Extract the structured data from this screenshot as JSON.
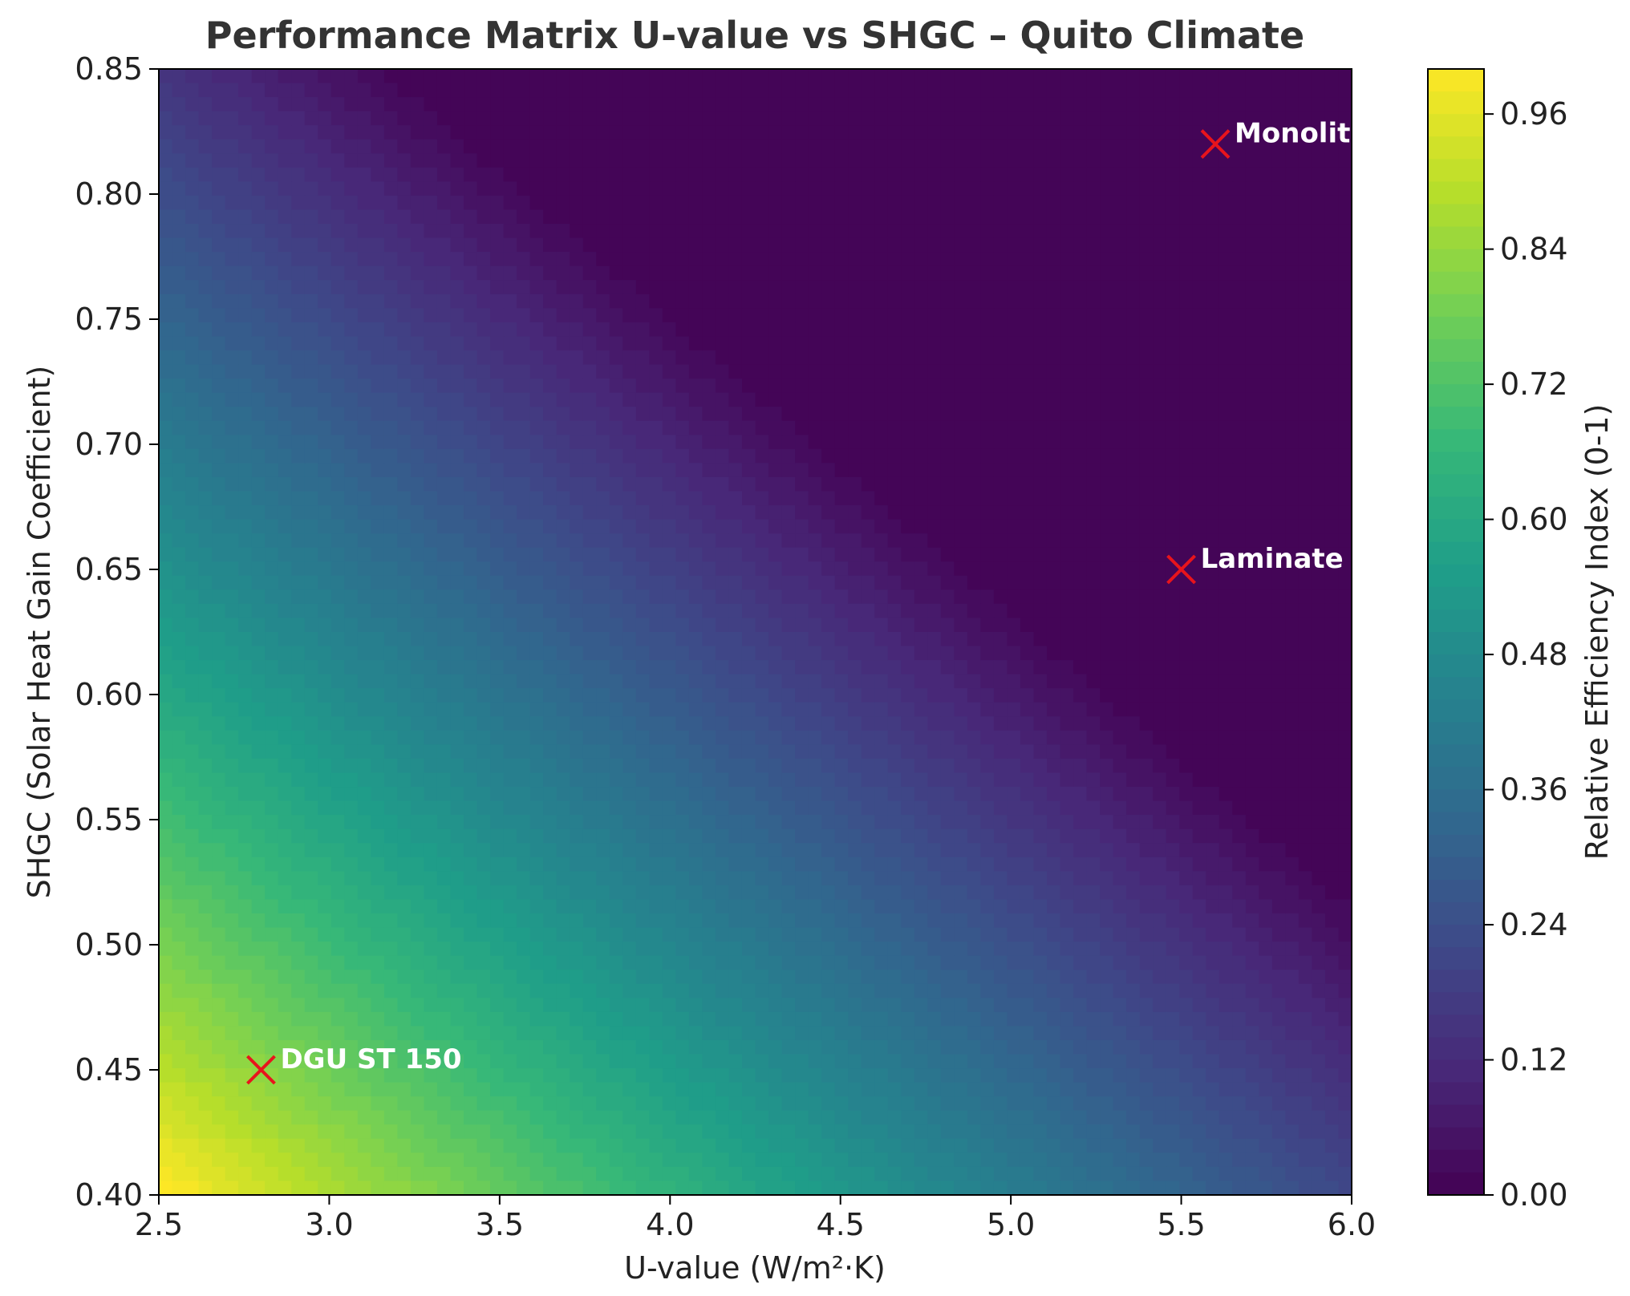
{
  "chart_data": {
    "type": "heatmap",
    "title": "Performance Matrix U-value vs SHGC – Quito Climate",
    "xlabel": "U-value (W/m²·K)",
    "ylabel": "SHGC (Solar Heat Gain Coefficient)",
    "xlim": [
      2.5,
      6.0
    ],
    "ylim": [
      0.4,
      0.85
    ],
    "x_ticks": [
      "2.5",
      "3.0",
      "3.5",
      "4.0",
      "4.5",
      "5.0",
      "5.5",
      "6.0"
    ],
    "y_ticks": [
      "0.40",
      "0.45",
      "0.50",
      "0.55",
      "0.60",
      "0.65",
      "0.70",
      "0.75",
      "0.80",
      "0.85"
    ],
    "colorbar": {
      "label": "Relative Efficiency Index (0-1)",
      "range": [
        0,
        1
      ],
      "ticks": [
        "0.00",
        "0.12",
        "0.24",
        "0.36",
        "0.48",
        "0.60",
        "0.72",
        "0.84",
        "0.96"
      ],
      "colormap": "viridis"
    },
    "grid": false,
    "points": [
      {
        "label": "DGU ST 150",
        "x": 2.8,
        "y": 0.45
      },
      {
        "label": "Laminate",
        "x": 5.5,
        "y": 0.65
      },
      {
        "label": "Monolit",
        "x": 5.6,
        "y": 0.82
      }
    ],
    "marker_color": "#e8141c"
  }
}
